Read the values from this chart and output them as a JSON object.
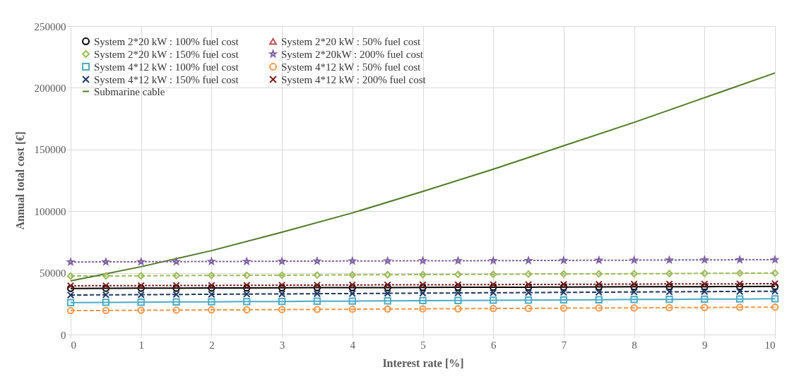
{
  "chart_data": {
    "type": "line",
    "xlabel": "Interest rate [%]",
    "ylabel": "Annual total cost [€]",
    "x": [
      0,
      0.5,
      1,
      1.5,
      2,
      2.5,
      3,
      3.5,
      4,
      4.5,
      5,
      5.5,
      6,
      6.5,
      7,
      7.5,
      8,
      8.5,
      9,
      9.5,
      10
    ],
    "xlim": [
      0,
      10
    ],
    "xticks": [
      0,
      1,
      2,
      3,
      4,
      5,
      6,
      7,
      8,
      9,
      10
    ],
    "ylim": [
      0,
      250000
    ],
    "yticks": [
      0,
      50000,
      100000,
      150000,
      200000,
      250000
    ],
    "grid": true,
    "legend": "top left",
    "series": [
      {
        "name": "System 2*20 kW : 100% fuel cost",
        "color": "#000000",
        "marker": "circle",
        "line_style": "solid",
        "values": [
          37400,
          37500,
          37600,
          37600,
          37700,
          37800,
          37900,
          38000,
          38000,
          38100,
          38200,
          38300,
          38400,
          38400,
          38500,
          38600,
          38700,
          38800,
          38800,
          38900,
          39000
        ]
      },
      {
        "name": "System 2*20 kW : 150% fuel cost",
        "color": "#9bbb59",
        "marker": "diamond",
        "line_style": "dashed",
        "values": [
          47400,
          47500,
          47600,
          47800,
          47900,
          48000,
          48100,
          48200,
          48400,
          48500,
          48600,
          48700,
          48800,
          49000,
          49100,
          49200,
          49300,
          49400,
          49600,
          49700,
          49800
        ]
      },
      {
        "name": "System 4*12 kW : 100% fuel cost",
        "color": "#4bacc6",
        "marker": "square",
        "line_style": "solid",
        "values": [
          25900,
          26100,
          26200,
          26400,
          26500,
          26700,
          26800,
          27000,
          27100,
          27300,
          27500,
          27600,
          27800,
          27900,
          28100,
          28200,
          28400,
          28500,
          28700,
          28800,
          29000
        ]
      },
      {
        "name": "System 4*12 kW : 150% fuel cost",
        "color": "#1f3864",
        "marker": "cross",
        "line_style": "dashed",
        "values": [
          32000,
          32200,
          32300,
          32500,
          32600,
          32800,
          32900,
          33100,
          33200,
          33400,
          33600,
          33700,
          33900,
          34000,
          34200,
          34300,
          34500,
          34600,
          34800,
          34900,
          35100
        ]
      },
      {
        "name": "Submarine cable",
        "color": "#4f7a28",
        "marker": "none",
        "line_style": "solid",
        "x": [
          0,
          1,
          2,
          3,
          4,
          5,
          6,
          7,
          8,
          9,
          10
        ],
        "values": [
          43500,
          55000,
          68000,
          83000,
          98600,
          116000,
          134000,
          153000,
          172000,
          192000,
          212000
        ]
      },
      {
        "name": "System 2*20 kW : 50% fuel cost",
        "color": "#c0504d",
        "marker": "triangle",
        "line_style": "dashed",
        "values": [
          null,
          null,
          null,
          null,
          null,
          null,
          null,
          null,
          null,
          null,
          null,
          null,
          null,
          null,
          null,
          null,
          null,
          null,
          null,
          null,
          null
        ]
      },
      {
        "name": "System 2*20kW : 200% fuel cost",
        "color": "#8064a2",
        "marker": "star",
        "line_style": "dotted",
        "values": [
          58800,
          58900,
          59000,
          59100,
          59200,
          59300,
          59400,
          59500,
          59600,
          59700,
          59800,
          59800,
          59900,
          60000,
          60100,
          60200,
          60300,
          60400,
          60500,
          60600,
          60700
        ]
      },
      {
        "name": "System 4*12 kW : 50% fuel cost",
        "color": "#f79646",
        "marker": "circle",
        "line_style": "dashed",
        "values": [
          19400,
          19500,
          19700,
          19800,
          20000,
          20100,
          20200,
          20400,
          20500,
          20700,
          20800,
          20900,
          21100,
          21200,
          21400,
          21500,
          21600,
          21800,
          21900,
          22100,
          22200
        ]
      },
      {
        "name": "System 4*12 kW : 200% fuel cost",
        "color": "#7f1f1f",
        "marker": "cross",
        "line_style": "dotted",
        "values": [
          39500,
          39600,
          39700,
          39800,
          39800,
          39900,
          40000,
          40100,
          40200,
          40300,
          40400,
          40400,
          40500,
          40600,
          40700,
          40800,
          40900,
          41000,
          41000,
          41100,
          41200
        ]
      }
    ]
  }
}
